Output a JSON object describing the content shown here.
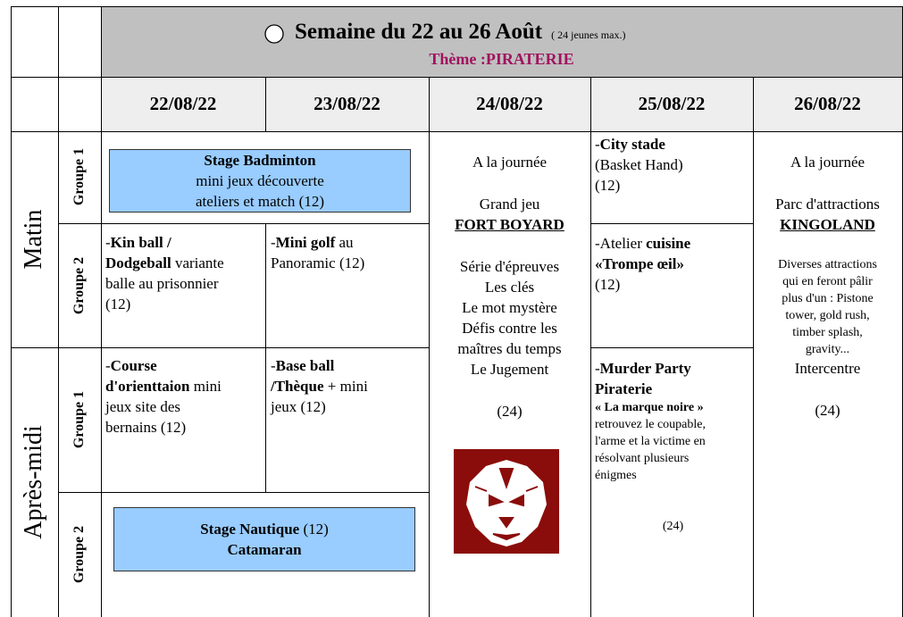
{
  "header": {
    "title": "Semaine du 22 au 26 Août",
    "note": "( 24  jeunes max.)",
    "theme": "Thème :PIRATERIE"
  },
  "periods": [
    "Matin",
    "Après-midi"
  ],
  "groups": [
    "Groupe 1",
    "Groupe 2",
    "Groupe 1",
    "Groupe 2"
  ],
  "dates": [
    "22/08/22",
    "23/08/22",
    "24/08/22",
    "25/08/22",
    "26/08/22"
  ],
  "activities": [
    {
      "blocks": [
        [
          [
            {
              "text": "Stage Badminton",
              "bold": true
            }
          ],
          [
            {
              "text": "mini jeux découverte"
            }
          ],
          [
            {
              "text": "ateliers et match (12)"
            }
          ]
        ]
      ]
    },
    {
      "blocks": [
        [
          [
            {
              "text": "-"
            },
            {
              "text": "Kin ball /",
              "bold": true
            }
          ],
          [
            {
              "text": "Dodgeball",
              "bold": true
            },
            {
              "text": " variante"
            }
          ],
          [
            {
              "text": "balle au prisonnier"
            }
          ],
          [
            {
              "text": "(12)"
            }
          ]
        ]
      ]
    },
    {
      "blocks": [
        [
          [
            {
              "text": "-"
            },
            {
              "text": "Mini golf",
              "bold": true
            },
            {
              "text": " au"
            }
          ],
          [
            {
              "text": "Panoramic (12)"
            }
          ]
        ]
      ]
    },
    {
      "blocks": [
        [
          [
            {
              "text": "A la journée"
            }
          ]
        ],
        [
          [
            {
              "text": "Grand jeu"
            }
          ],
          [
            {
              "text": "FORT BOYARD",
              "bold": true,
              "underline": true
            }
          ]
        ],
        [
          [
            {
              "text": "Série d'épreuves"
            }
          ],
          [
            {
              "text": "Les clés"
            }
          ],
          [
            {
              "text": "Le mot mystère"
            }
          ],
          [
            {
              "text": "Défis contre les"
            }
          ],
          [
            {
              "text": "maîtres du temps"
            }
          ],
          [
            {
              "text": "Le Jugement"
            }
          ]
        ],
        [
          [
            {
              "text": "(24)"
            }
          ]
        ]
      ]
    },
    {
      "blocks": [
        [
          [
            {
              "text": "-"
            },
            {
              "text": "City stade",
              "bold": true
            }
          ],
          [
            {
              "text": "(Basket Hand)"
            }
          ],
          [
            {
              "text": "(12)"
            }
          ]
        ]
      ]
    },
    {
      "blocks": [
        [
          [
            {
              "text": "-Atelier "
            },
            {
              "text": "cuisine",
              "bold": true
            }
          ],
          [
            {
              "text": "«Trompe œil»",
              "bold": true
            }
          ],
          [
            {
              "text": "(12)"
            }
          ]
        ]
      ]
    },
    {
      "blocks": [
        [
          [
            {
              "text": "-"
            },
            {
              "text": "Murder Party",
              "bold": true
            }
          ],
          [
            {
              "text": "Piraterie",
              "bold": true
            }
          ],
          [
            {
              "text": "« La marque noire »",
              "bold": true,
              "small": true
            }
          ],
          [
            {
              "text": "retrouvez le coupable,",
              "small": true
            }
          ],
          [
            {
              "text": "l'arme et la victime en",
              "small": true
            }
          ],
          [
            {
              "text": "résolvant plusieurs",
              "small": true
            }
          ],
          [
            {
              "text": "énigmes",
              "small": true
            }
          ]
        ],
        [
          [
            {
              "text": "(24)",
              "small": true
            }
          ]
        ]
      ]
    },
    {
      "blocks": [
        [
          [
            {
              "text": "A la journée"
            }
          ]
        ],
        [
          [
            {
              "text": "Parc d'attractions"
            }
          ],
          [
            {
              "text": "KINGOLAND",
              "bold": true,
              "underline": true
            }
          ]
        ],
        [
          [
            {
              "text": "Diverses attractions",
              "small": true
            }
          ],
          [
            {
              "text": "qui en feront pâlir",
              "small": true
            }
          ],
          [
            {
              "text": "plus d'un : Pistone",
              "small": true
            }
          ],
          [
            {
              "text": "tower,  gold rush,",
              "small": true
            }
          ],
          [
            {
              "text": "timber splash,",
              "small": true
            }
          ],
          [
            {
              "text": "gravity...",
              "small": true
            }
          ],
          [
            {
              "text": "Intercentre"
            }
          ]
        ],
        [
          [
            {
              "text": "(24)"
            }
          ]
        ]
      ]
    },
    {
      "blocks": [
        [
          [
            {
              "text": "-"
            },
            {
              "text": "Course",
              "bold": true
            }
          ],
          [
            {
              "text": "d'orienttaion",
              "bold": true
            },
            {
              "text": " mini"
            }
          ],
          [
            {
              "text": "jeux site des"
            }
          ],
          [
            {
              "text": "bernains (12)"
            }
          ]
        ]
      ]
    },
    {
      "blocks": [
        [
          [
            {
              "text": "-"
            },
            {
              "text": "Base ball",
              "bold": true
            }
          ],
          [
            {
              "text": "/Thèque",
              "bold": true
            },
            {
              "text": " + mini"
            }
          ],
          [
            {
              "text": "jeux (12)"
            }
          ]
        ]
      ]
    },
    {
      "blocks": [
        [
          [
            {
              "text": "Stage Nautique",
              "bold": true
            },
            {
              "text": " (12)"
            }
          ],
          [
            {
              "text": "Catamaran",
              "bold": true
            }
          ]
        ]
      ]
    }
  ]
}
